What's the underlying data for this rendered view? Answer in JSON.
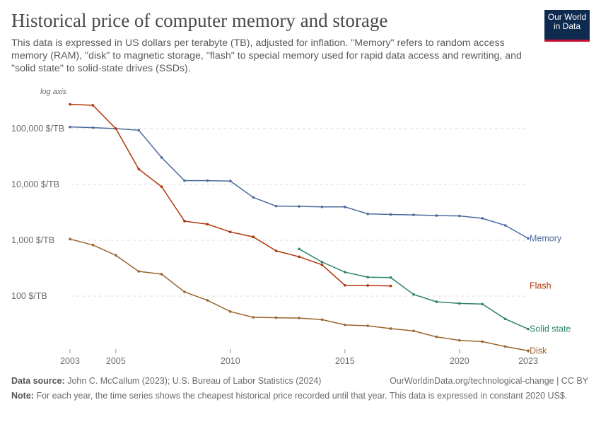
{
  "header": {
    "title": "Historical price of computer memory and storage",
    "subtitle": "This data is expressed in US dollars per terabyte (TB), adjusted for inflation. \"Memory\" refers to random access memory (RAM), \"disk\" to magnetic storage, \"flash\" to special memory used for rapid data access and rewriting, and \"solid state\" to solid-state drives (SSDs).",
    "logo": "Our World in Data"
  },
  "footer": {
    "source_label": "Data source:",
    "source": "John C. McCallum (2023); U.S. Bureau of Labor Statistics (2024)",
    "url_license": "OurWorldinData.org/technological-change | CC BY",
    "note_label": "Note:",
    "note": "For each year, the time series shows the cheapest historical price recorded until that year. This data is expressed in constant 2020 US$."
  },
  "chart_data": {
    "type": "line",
    "title": "Historical price of computer memory and storage",
    "y_scale": "log",
    "y_axis_note": "log axis",
    "ylim": [
      9,
      330000
    ],
    "xlim": [
      2003,
      2023
    ],
    "x_ticks": [
      2003,
      2005,
      2010,
      2015,
      2020,
      2023
    ],
    "y_ticks": [
      {
        "value": 100,
        "label": "100 $/TB"
      },
      {
        "value": 1000,
        "label": "1,000 $/TB"
      },
      {
        "value": 10000,
        "label": "10,000 $/TB"
      },
      {
        "value": 100000,
        "label": "100,000 $/TB"
      }
    ],
    "grid": "horizontal dashed",
    "legend": "inline labels at right end",
    "series": [
      {
        "name": "Memory",
        "color": "#4c6a9c",
        "x": [
          2003,
          2004,
          2005,
          2006,
          2007,
          2008,
          2009,
          2010,
          2011,
          2012,
          2013,
          2014,
          2015,
          2016,
          2017,
          2018,
          2019,
          2020,
          2021,
          2022,
          2023
        ],
        "values": [
          107000,
          104000,
          100000,
          93500,
          30300,
          11700,
          11700,
          11500,
          5860,
          4090,
          4050,
          3960,
          3960,
          2970,
          2900,
          2850,
          2770,
          2730,
          2470,
          1850,
          1080
        ]
      },
      {
        "name": "Flash",
        "color": "#b13507",
        "x": [
          2003,
          2004,
          2005,
          2006,
          2007,
          2008,
          2009,
          2010,
          2011,
          2012,
          2013,
          2014,
          2015,
          2016,
          2017
        ],
        "values": [
          272000,
          262000,
          100000,
          18800,
          9100,
          2200,
          1940,
          1410,
          1150,
          646,
          507,
          364,
          156,
          155,
          152
        ]
      },
      {
        "name": "Solid state",
        "color": "#2c8465",
        "x": [
          2013,
          2014,
          2015,
          2016,
          2017,
          2018,
          2019,
          2020,
          2021,
          2022,
          2023
        ],
        "values": [
          698,
          408,
          269,
          218,
          215,
          107,
          79,
          74,
          72,
          39,
          25.7
        ]
      },
      {
        "name": "Disk",
        "color": "#9a652e",
        "x": [
          2003,
          2004,
          2005,
          2006,
          2007,
          2008,
          2009,
          2010,
          2011,
          2012,
          2013,
          2014,
          2015,
          2016,
          2017,
          2018,
          2019,
          2020,
          2021,
          2022,
          2023
        ],
        "values": [
          1050,
          822,
          537,
          277,
          247,
          119,
          84,
          52.7,
          41.7,
          41,
          40.4,
          37.9,
          30.5,
          29.4,
          26.2,
          23.8,
          18.6,
          16.1,
          15.3,
          12.5,
          10.5
        ]
      }
    ]
  }
}
